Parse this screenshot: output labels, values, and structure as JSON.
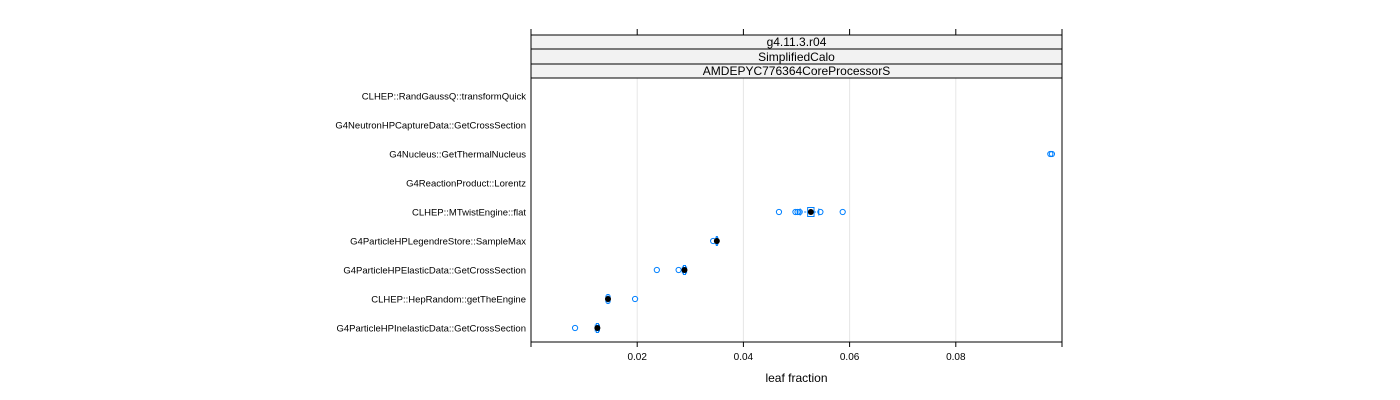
{
  "chart_data": {
    "type": "box",
    "title": "",
    "xlabel": "leaf fraction",
    "ylabel": "",
    "xlim": [
      0,
      0.1
    ],
    "grid": true,
    "strips": [
      "g4.11.3.r04",
      "SimplifiedCalo",
      "AMDEPYC776364CoreProcessorS"
    ],
    "x_ticks": [
      0.02,
      0.04,
      0.06,
      0.08
    ],
    "x_tick_labels": [
      "0.02",
      "0.04",
      "0.06",
      "0.08"
    ],
    "categories": [
      "CLHEP::RandGaussQ::transformQuick",
      "G4NeutronHPCaptureData::GetCrossSection",
      "G4Nucleus::GetThermalNucleus",
      "G4ReactionProduct::Lorentz",
      "CLHEP::MTwistEngine::flat",
      "G4ParticleHPLegendreStore::SampleMax",
      "G4ParticleHPElasticData::GetCrossSection",
      "CLHEP::HepRandom::getTheEngine",
      "G4ParticleHPInelasticData::GetCrossSection"
    ],
    "series": [
      {
        "category": "CLHEP::RandGaussQ::transformQuick",
        "median": null,
        "box": null,
        "outliers": []
      },
      {
        "category": "G4NeutronHPCaptureData::GetCrossSection",
        "median": null,
        "box": null,
        "outliers": []
      },
      {
        "category": "G4Nucleus::GetThermalNucleus",
        "median": null,
        "box": null,
        "outliers": [
          0.0978,
          0.0981
        ]
      },
      {
        "category": "G4ReactionProduct::Lorentz",
        "median": null,
        "box": null,
        "outliers": []
      },
      {
        "category": "CLHEP::MTwistEngine::flat",
        "median": 0.0527,
        "box": [
          0.0521,
          0.0533
        ],
        "whiskers": [
          0.0507,
          0.0542
        ],
        "outliers": [
          0.0467,
          0.0498,
          0.0502,
          0.0506,
          0.0545,
          0.0587
        ]
      },
      {
        "category": "G4ParticleHPLegendreStore::SampleMax",
        "median": 0.035,
        "box": [
          0.0349,
          0.0351
        ],
        "whiskers": [
          0.0348,
          0.0352
        ],
        "outliers": [
          0.0343
        ]
      },
      {
        "category": "G4ParticleHPElasticData::GetCrossSection",
        "median": 0.0289,
        "box": [
          0.0287,
          0.0291
        ],
        "whiskers": [
          0.0285,
          0.0293
        ],
        "outliers": [
          0.0237,
          0.0278
        ]
      },
      {
        "category": "CLHEP::HepRandom::getTheEngine",
        "median": 0.0145,
        "box": [
          0.0143,
          0.0147
        ],
        "whiskers": [
          0.0141,
          0.0149
        ],
        "outliers": [
          0.0196
        ]
      },
      {
        "category": "G4ParticleHPInelasticData::GetCrossSection",
        "median": 0.0125,
        "box": [
          0.0123,
          0.0127
        ],
        "whiskers": [
          0.0121,
          0.0129
        ],
        "outliers": [
          0.0083
        ]
      }
    ],
    "colors": {
      "point": "#0080ff",
      "median": "#000000",
      "grid": "#e6e6e6",
      "strip_bg": "#f2f2f2",
      "box": "#0080ff"
    }
  }
}
